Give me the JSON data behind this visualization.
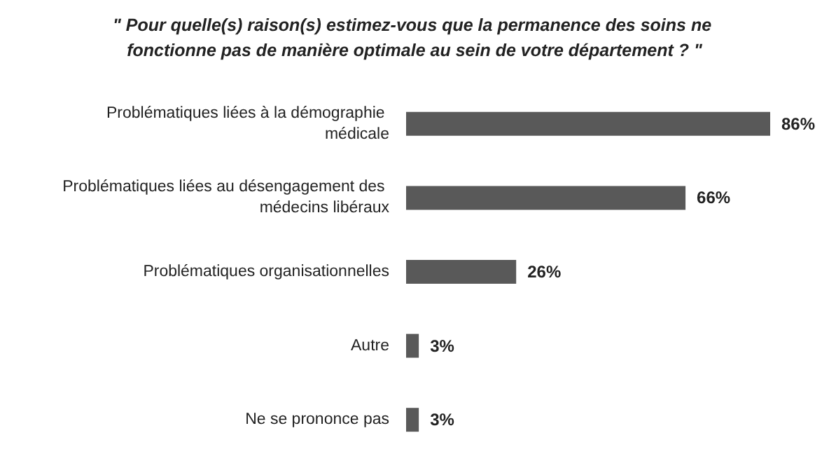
{
  "chart_data": {
    "type": "bar",
    "orientation": "horizontal",
    "title": "\" Pour quelle(s) raison(s) estimez-vous que la permanence des soins ne fonctionne pas de manière optimale au sein de votre département ? \"",
    "categories": [
      "Problématiques liées à la démographie médicale",
      "Problématiques liées au désengagement des médecins libéraux",
      "Problématiques organisationnelles",
      "Autre",
      "Ne se prononce pas"
    ],
    "values": [
      86,
      66,
      26,
      3,
      3
    ],
    "value_labels": [
      "86%",
      "66%",
      "26%",
      "3%",
      "3%"
    ],
    "color": "#595959"
  }
}
